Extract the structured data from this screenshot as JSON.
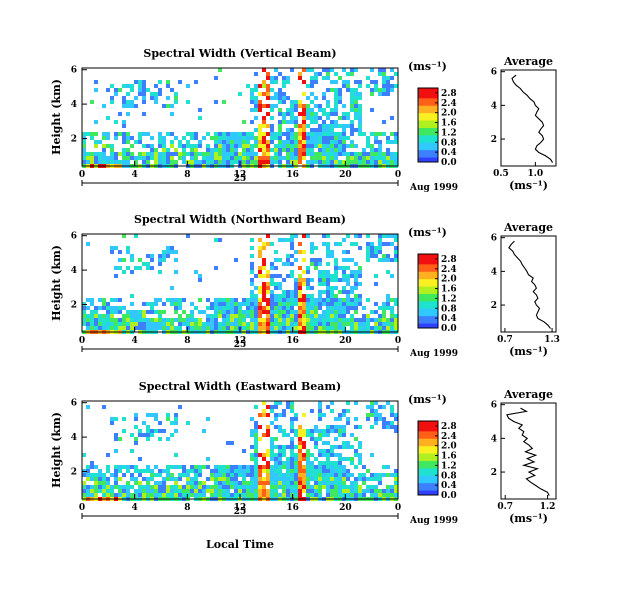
{
  "figure": {
    "xlabel": "Local Time",
    "date_label": "Aug 1999",
    "day_label": "25"
  },
  "chart_data": [
    {
      "type": "heatmap",
      "title": "Spectral Width (Vertical Beam)",
      "xlabel": "Local Time",
      "ylabel": "Height (km)",
      "x_ticks": [
        "0",
        "4",
        "8",
        "12",
        "16",
        "20",
        "0"
      ],
      "xlim": [
        0,
        24
      ],
      "y_ticks": [
        "2",
        "4",
        "6"
      ],
      "ylim": [
        0.4,
        6.1
      ],
      "colorbar": {
        "label": "(ms⁻¹)",
        "ticks": [
          "0.0",
          "0.4",
          "0.8",
          "1.2",
          "1.6",
          "2.0",
          "2.4",
          "2.8"
        ],
        "range": [
          0,
          3.0
        ]
      },
      "average_profile": {
        "title": "Average",
        "xlabel": "(ms⁻¹)",
        "x_ticks": [
          "0.5",
          "1.0"
        ],
        "xlim": [
          0.5,
          1.3
        ],
        "y_ticks": [
          "2",
          "4",
          "6"
        ],
        "ylim": [
          0.4,
          6.1
        ],
        "height": [
          0.6,
          0.8,
          1.0,
          1.2,
          1.4,
          1.6,
          1.8,
          2.0,
          2.2,
          2.4,
          2.6,
          2.8,
          3.0,
          3.2,
          3.4,
          3.6,
          3.8,
          4.0,
          4.2,
          4.4,
          4.6,
          4.8,
          5.0,
          5.2,
          5.4,
          5.6,
          5.8
        ],
        "value": [
          1.25,
          1.22,
          1.15,
          1.05,
          1.0,
          1.02,
          1.08,
          1.12,
          1.1,
          1.05,
          1.08,
          1.12,
          1.1,
          1.05,
          1.0,
          1.02,
          1.05,
          1.0,
          0.98,
          0.92,
          0.88,
          0.82,
          0.78,
          0.72,
          0.68,
          0.66,
          0.72
        ]
      }
    },
    {
      "type": "heatmap",
      "title": "Spectral Width (Northward Beam)",
      "xlabel": "Local Time",
      "ylabel": "Height (km)",
      "x_ticks": [
        "0",
        "4",
        "8",
        "12",
        "16",
        "20",
        "0"
      ],
      "xlim": [
        0,
        24
      ],
      "y_ticks": [
        "2",
        "4",
        "6"
      ],
      "ylim": [
        0.4,
        6.1
      ],
      "colorbar": {
        "label": "(ms⁻¹)",
        "ticks": [
          "0.0",
          "0.4",
          "0.8",
          "1.2",
          "1.6",
          "2.0",
          "2.4",
          "2.8"
        ],
        "range": [
          0,
          3.0
        ]
      },
      "average_profile": {
        "title": "Average",
        "xlabel": "(ms⁻¹)",
        "x_ticks": [
          "0.7",
          "1.3"
        ],
        "xlim": [
          0.65,
          1.35
        ],
        "y_ticks": [
          "2",
          "4",
          "6"
        ],
        "ylim": [
          0.4,
          6.1
        ],
        "height": [
          0.6,
          0.8,
          1.0,
          1.2,
          1.4,
          1.6,
          1.8,
          2.0,
          2.2,
          2.4,
          2.6,
          2.8,
          3.0,
          3.2,
          3.4,
          3.6,
          3.8,
          4.0,
          4.2,
          4.4,
          4.6,
          4.8,
          5.0,
          5.2,
          5.4,
          5.6,
          5.8
        ],
        "value": [
          1.28,
          1.25,
          1.2,
          1.12,
          1.1,
          1.12,
          1.14,
          1.1,
          1.08,
          1.12,
          1.1,
          1.06,
          1.1,
          1.08,
          1.04,
          1.06,
          1.0,
          0.98,
          0.95,
          0.92,
          0.9,
          0.86,
          0.82,
          0.8,
          0.75,
          0.78,
          0.82
        ]
      }
    },
    {
      "type": "heatmap",
      "title": "Spectral Width (Eastward Beam)",
      "xlabel": "Local Time",
      "ylabel": "Height (km)",
      "x_ticks": [
        "0",
        "4",
        "8",
        "12",
        "16",
        "20",
        "0"
      ],
      "xlim": [
        0,
        24
      ],
      "y_ticks": [
        "2",
        "4",
        "6"
      ],
      "ylim": [
        0.4,
        6.1
      ],
      "colorbar": {
        "label": "(ms⁻¹)",
        "ticks": [
          "0.0",
          "0.4",
          "0.8",
          "1.2",
          "1.6",
          "2.0",
          "2.4",
          "2.8"
        ],
        "range": [
          0,
          3.0
        ]
      },
      "average_profile": {
        "title": "Average",
        "xlabel": "(ms⁻¹)",
        "x_ticks": [
          "0.7",
          "1.2"
        ],
        "xlim": [
          0.65,
          1.3
        ],
        "y_ticks": [
          "2",
          "4",
          "6"
        ],
        "ylim": [
          0.4,
          6.1
        ],
        "height": [
          0.6,
          0.8,
          1.0,
          1.2,
          1.4,
          1.6,
          1.8,
          2.0,
          2.2,
          2.4,
          2.6,
          2.8,
          3.0,
          3.2,
          3.4,
          3.6,
          3.8,
          4.0,
          4.2,
          4.4,
          4.6,
          4.8,
          5.0,
          5.2,
          5.4,
          5.6,
          5.8
        ],
        "value": [
          1.22,
          1.2,
          1.12,
          1.06,
          1.0,
          0.95,
          1.05,
          0.98,
          1.08,
          0.92,
          1.04,
          0.96,
          1.06,
          0.94,
          1.02,
          0.98,
          0.92,
          0.96,
          0.9,
          0.92,
          0.86,
          0.9,
          0.8,
          0.74,
          0.72,
          0.95,
          0.88
        ]
      }
    }
  ]
}
